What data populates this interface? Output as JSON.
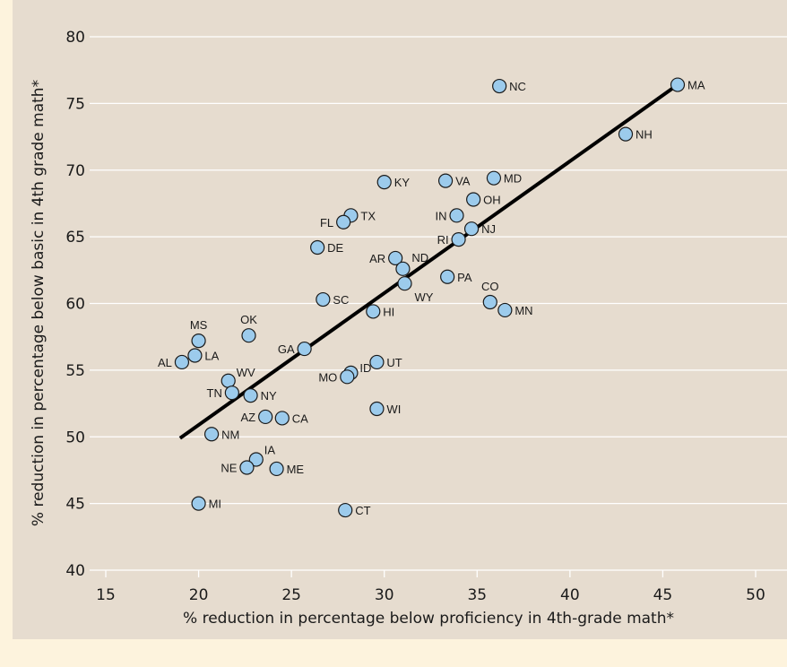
{
  "chart_data": {
    "type": "scatter",
    "xlabel": "% reduction in percentage below proficiency in 4th-grade math*",
    "ylabel": "% reduction in percentage below basic in 4th grade math*",
    "xlim": [
      15,
      50
    ],
    "ylim": [
      40,
      80
    ],
    "xticks": [
      15,
      20,
      25,
      30,
      35,
      40,
      45,
      50
    ],
    "yticks": [
      40,
      45,
      50,
      55,
      60,
      65,
      70,
      75,
      80
    ],
    "grid": "horizontal",
    "colors": {
      "background": "#e6dccf",
      "frame": "#fdf3dd",
      "point_fill": "#9ccbec",
      "point_stroke": "#1a1a1a",
      "trend_line": "#000000"
    },
    "trend_line": {
      "x": [
        19,
        45.8
      ],
      "y": [
        49.9,
        76.4
      ]
    },
    "points": [
      {
        "label": "MA",
        "x": 45.8,
        "y": 76.4
      },
      {
        "label": "NC",
        "x": 36.2,
        "y": 76.3
      },
      {
        "label": "NH",
        "x": 43.0,
        "y": 72.7
      },
      {
        "label": "MD",
        "x": 35.9,
        "y": 69.4
      },
      {
        "label": "VA",
        "x": 33.3,
        "y": 69.2
      },
      {
        "label": "KY",
        "x": 30.0,
        "y": 69.1
      },
      {
        "label": "OH",
        "x": 34.8,
        "y": 67.8
      },
      {
        "label": "IN",
        "x": 33.9,
        "y": 66.6
      },
      {
        "label": "TX",
        "x": 28.2,
        "y": 66.6
      },
      {
        "label": "FL",
        "x": 27.8,
        "y": 66.1
      },
      {
        "label": "NJ",
        "x": 34.7,
        "y": 65.6
      },
      {
        "label": "RI",
        "x": 34.0,
        "y": 64.8
      },
      {
        "label": "DE",
        "x": 26.4,
        "y": 64.2
      },
      {
        "label": "AR",
        "x": 30.6,
        "y": 63.4
      },
      {
        "label": "ND",
        "x": 31.0,
        "y": 62.6
      },
      {
        "label": "PA",
        "x": 33.4,
        "y": 62.0
      },
      {
        "label": "WY",
        "x": 31.1,
        "y": 61.5
      },
      {
        "label": "SC",
        "x": 26.7,
        "y": 60.3
      },
      {
        "label": "CO",
        "x": 35.7,
        "y": 60.1
      },
      {
        "label": "MN",
        "x": 36.5,
        "y": 59.5
      },
      {
        "label": "HI",
        "x": 29.4,
        "y": 59.4
      },
      {
        "label": "OK",
        "x": 22.7,
        "y": 57.6
      },
      {
        "label": "MS",
        "x": 20.0,
        "y": 57.2
      },
      {
        "label": "GA",
        "x": 25.7,
        "y": 56.6
      },
      {
        "label": "LA",
        "x": 19.8,
        "y": 56.1
      },
      {
        "label": "AL",
        "x": 19.1,
        "y": 55.6
      },
      {
        "label": "UT",
        "x": 29.6,
        "y": 55.6
      },
      {
        "label": "ID",
        "x": 28.2,
        "y": 54.8
      },
      {
        "label": "MO",
        "x": 28.0,
        "y": 54.5
      },
      {
        "label": "WV",
        "x": 21.6,
        "y": 54.2
      },
      {
        "label": "TN",
        "x": 21.8,
        "y": 53.3
      },
      {
        "label": "NY",
        "x": 22.8,
        "y": 53.1
      },
      {
        "label": "WI",
        "x": 29.6,
        "y": 52.1
      },
      {
        "label": "AZ",
        "x": 23.6,
        "y": 51.5
      },
      {
        "label": "CA",
        "x": 24.5,
        "y": 51.4
      },
      {
        "label": "NM",
        "x": 20.7,
        "y": 50.2
      },
      {
        "label": "IA",
        "x": 23.1,
        "y": 48.3
      },
      {
        "label": "NE",
        "x": 22.6,
        "y": 47.7
      },
      {
        "label": "ME",
        "x": 24.2,
        "y": 47.6
      },
      {
        "label": "MI",
        "x": 20.0,
        "y": 45.0
      },
      {
        "label": "CT",
        "x": 27.9,
        "y": 44.5
      }
    ]
  }
}
